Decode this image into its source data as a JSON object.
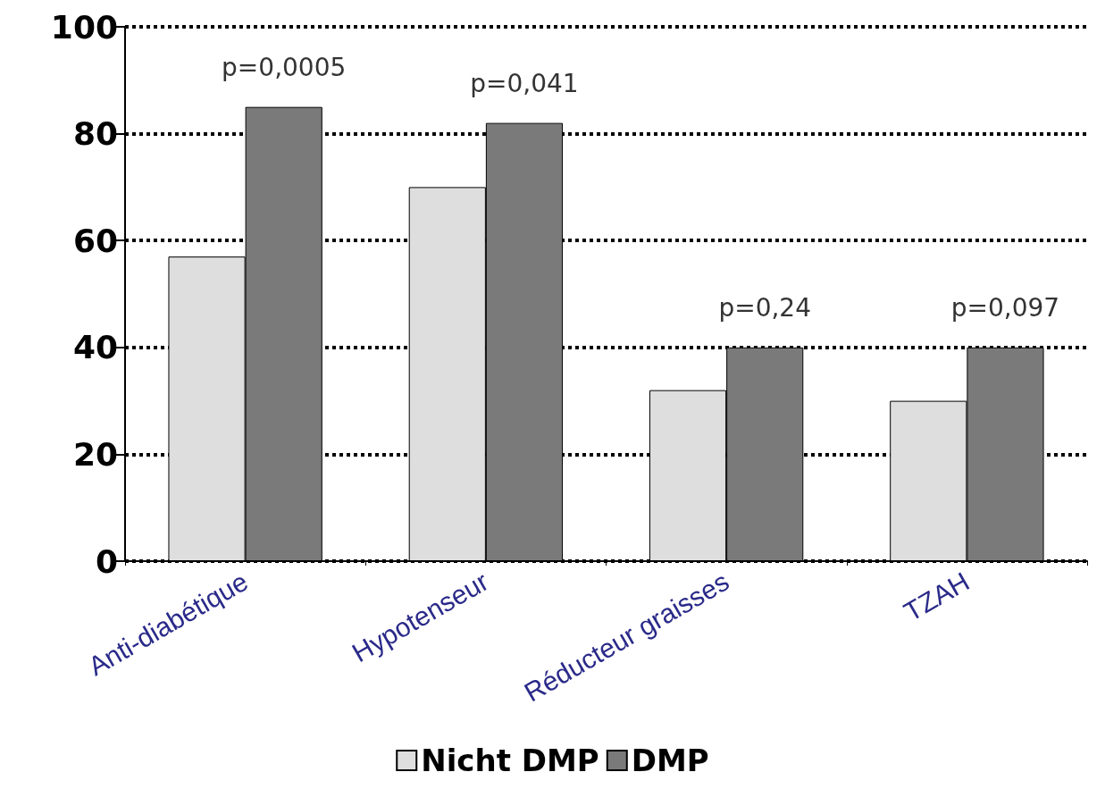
{
  "chart_data": {
    "type": "bar",
    "categories": [
      "Anti-diabétique",
      "Hypotenseur",
      "Réducteur graisses",
      "TZAH"
    ],
    "series": [
      {
        "name": "Nicht DMP",
        "color": "#dedede",
        "values": [
          57,
          70,
          32,
          30
        ]
      },
      {
        "name": "DMP",
        "color": "#7a7a7a",
        "values": [
          85,
          82,
          40,
          40
        ]
      }
    ],
    "ylim": [
      0,
      100
    ],
    "yticks": [
      0,
      20,
      40,
      60,
      80,
      100
    ],
    "grid": "y",
    "legend": "bottom",
    "annotations": [
      {
        "text": "p=0,0005",
        "x": "Anti-diabétique",
        "y": 85
      },
      {
        "text": "p=0,041",
        "x": "Hypotenseur",
        "y": 82
      },
      {
        "text": "p=0,24",
        "x": "Réducteur graisses",
        "y": 40
      },
      {
        "text": "p=0,097",
        "x": "TZAH",
        "y": 40
      }
    ]
  }
}
